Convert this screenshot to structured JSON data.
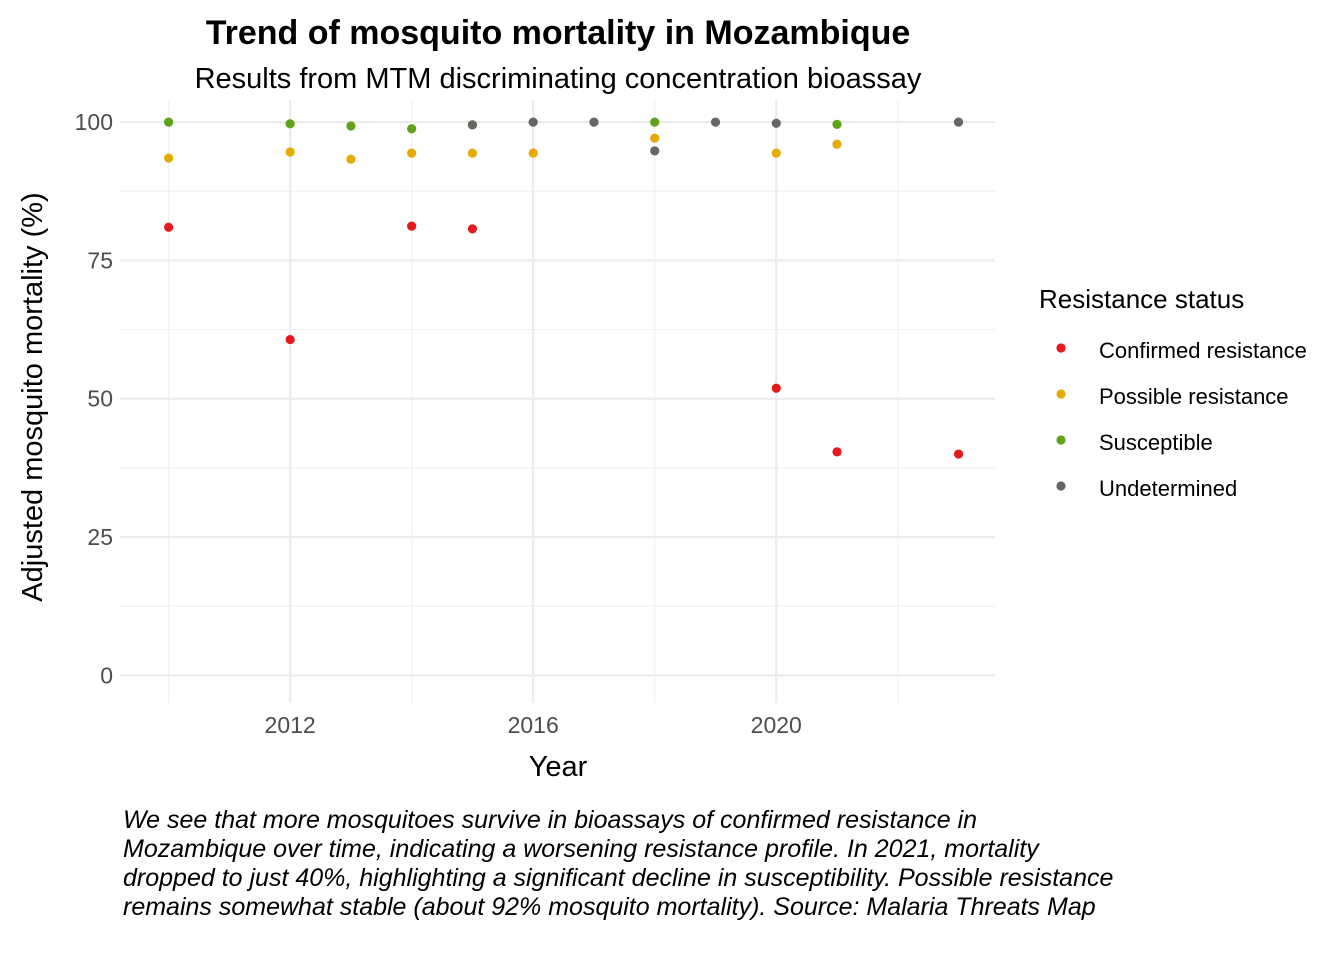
{
  "chart_data": {
    "type": "scatter",
    "title": "Trend of mosquito mortality in Mozambique",
    "subtitle": "Results from MTM discriminating concentration bioassay",
    "xlabel": "Year",
    "ylabel": "Adjusted mosquito mortality (%)",
    "x_ticks": [
      2012,
      2016,
      2020
    ],
    "y_ticks": [
      0,
      25,
      50,
      75,
      100
    ],
    "xlim": [
      2009.2,
      2023.6
    ],
    "ylim": [
      -5,
      104
    ],
    "grid": true,
    "legend": {
      "title": "Resistance status",
      "position": "right"
    },
    "series": [
      {
        "name": "Confirmed resistance",
        "color": "#e41a1c",
        "points": [
          [
            2010,
            81
          ],
          [
            2012,
            60.7
          ],
          [
            2014,
            81.2
          ],
          [
            2015,
            80.7
          ],
          [
            2020,
            51.9
          ],
          [
            2021,
            40.4
          ],
          [
            2023,
            40
          ]
        ]
      },
      {
        "name": "Possible resistance",
        "color": "#e6ab02",
        "points": [
          [
            2010,
            93.5
          ],
          [
            2012,
            94.6
          ],
          [
            2013,
            93.3
          ],
          [
            2014,
            94.4
          ],
          [
            2015,
            94.4
          ],
          [
            2016,
            94.4
          ],
          [
            2018,
            97.1
          ],
          [
            2020,
            94.4
          ],
          [
            2021,
            96
          ]
        ]
      },
      {
        "name": "Susceptible",
        "color": "#5ea31a",
        "points": [
          [
            2010,
            100
          ],
          [
            2012,
            99.7
          ],
          [
            2013,
            99.3
          ],
          [
            2014,
            98.8
          ],
          [
            2015,
            99.5
          ],
          [
            2018,
            100
          ],
          [
            2021,
            99.6
          ]
        ]
      },
      {
        "name": "Undetermined",
        "color": "#666666",
        "points": [
          [
            2015,
            99.5
          ],
          [
            2016,
            100
          ],
          [
            2017,
            100
          ],
          [
            2018,
            94.8
          ],
          [
            2019,
            100
          ],
          [
            2020,
            99.8
          ],
          [
            2023,
            100
          ]
        ]
      }
    ],
    "caption": "We see that more mosquitoes survive in bioassays of confirmed resistance in Mozambique over time, indicating a worsening resistance profile. In 2021, mortality dropped to just 40%, highlighting a significant decline in susceptibility. Possible resistance remains somewhat stable (about 92% mosquito mortality). Source: Malaria Threats Map"
  }
}
